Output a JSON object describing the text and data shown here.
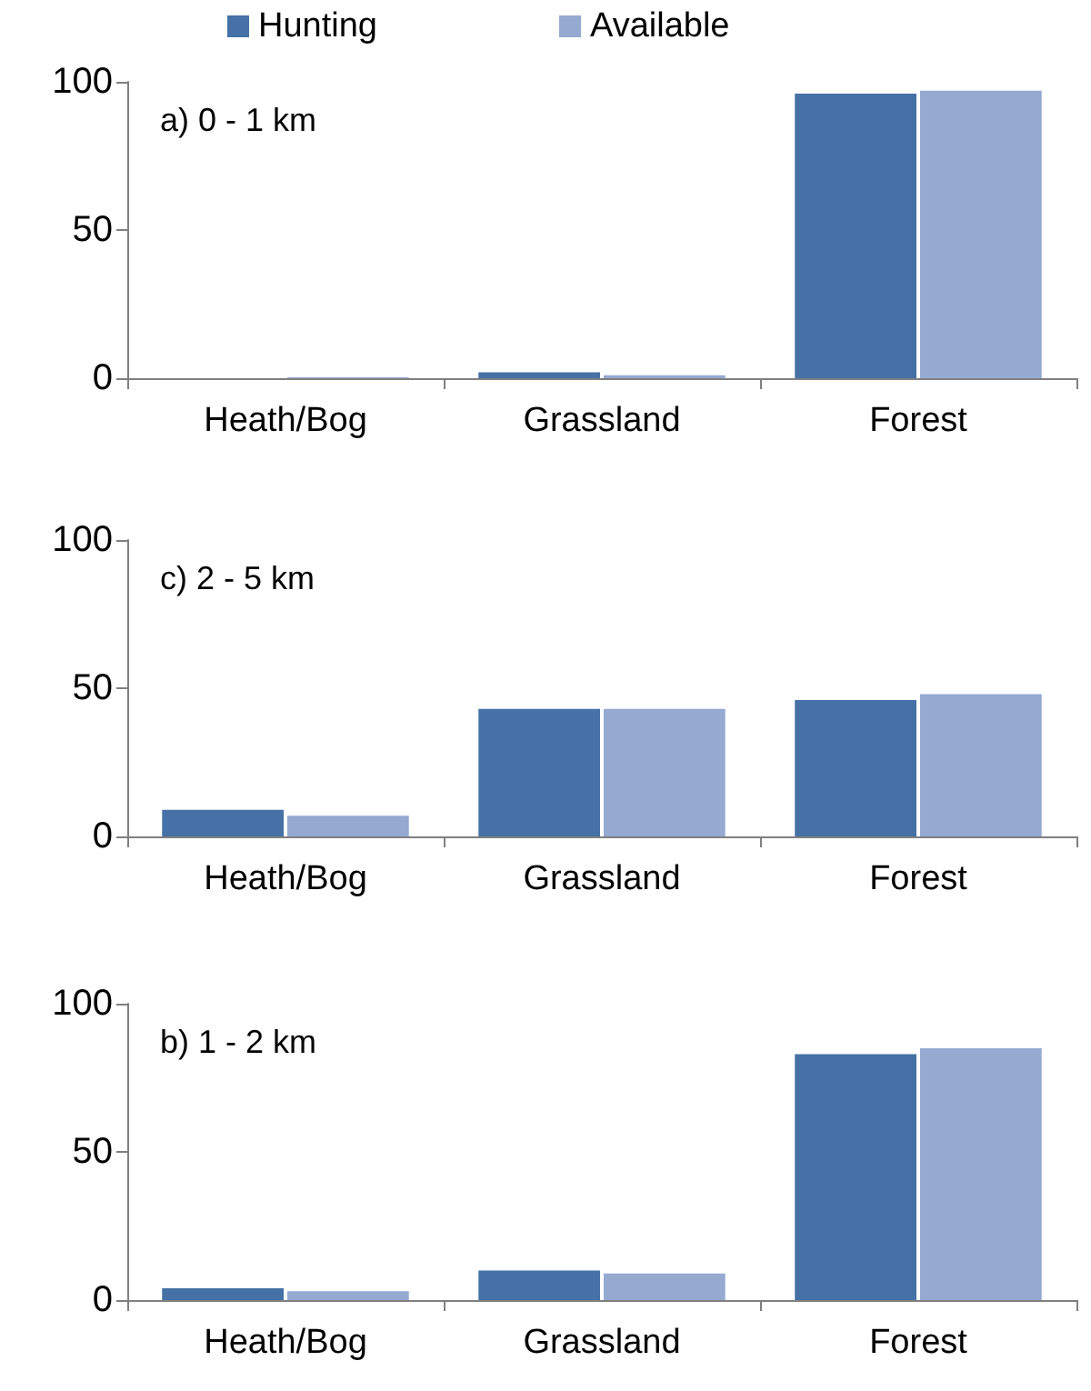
{
  "chart_data": [
    {
      "type": "bar",
      "categories": [
        "Heath/Bog",
        "Grassland",
        "Forest"
      ],
      "series": [
        {
          "name": "Hunting",
          "color": "#4571a6",
          "values": [
            0,
            2,
            96
          ]
        },
        {
          "name": "Available",
          "color": "#95a9d1",
          "values": [
            0.3,
            1,
            97
          ]
        }
      ],
      "ylim": [
        0,
        100
      ],
      "yticks": [
        0,
        50,
        100
      ],
      "grid": false,
      "legend": "top",
      "annotations": [
        "a) 0 - 1 km"
      ]
    },
    {
      "type": "bar",
      "categories": [
        "Heath/Bog",
        "Grassland",
        "Forest"
      ],
      "series": [
        {
          "color": "#4571a6",
          "values": [
            9,
            43,
            46
          ]
        },
        {
          "color": "#95a9d1",
          "values": [
            7,
            43,
            48
          ]
        }
      ],
      "ylim": [
        0,
        100
      ],
      "yticks": [
        0,
        50,
        100
      ],
      "grid": false,
      "annotations": [
        "c) 2 - 5 km"
      ]
    },
    {
      "type": "bar",
      "categories": [
        "Heath/Bog",
        "Grassland",
        "Forest"
      ],
      "series": [
        {
          "color": "#4571a6",
          "values": [
            4,
            10,
            83
          ]
        },
        {
          "color": "#95a9d1",
          "values": [
            3,
            9,
            85
          ]
        }
      ],
      "ylim": [
        0,
        100
      ],
      "yticks": [
        0,
        50,
        100
      ],
      "grid": false,
      "annotations": [
        "b) 1 - 2 km"
      ]
    }
  ]
}
